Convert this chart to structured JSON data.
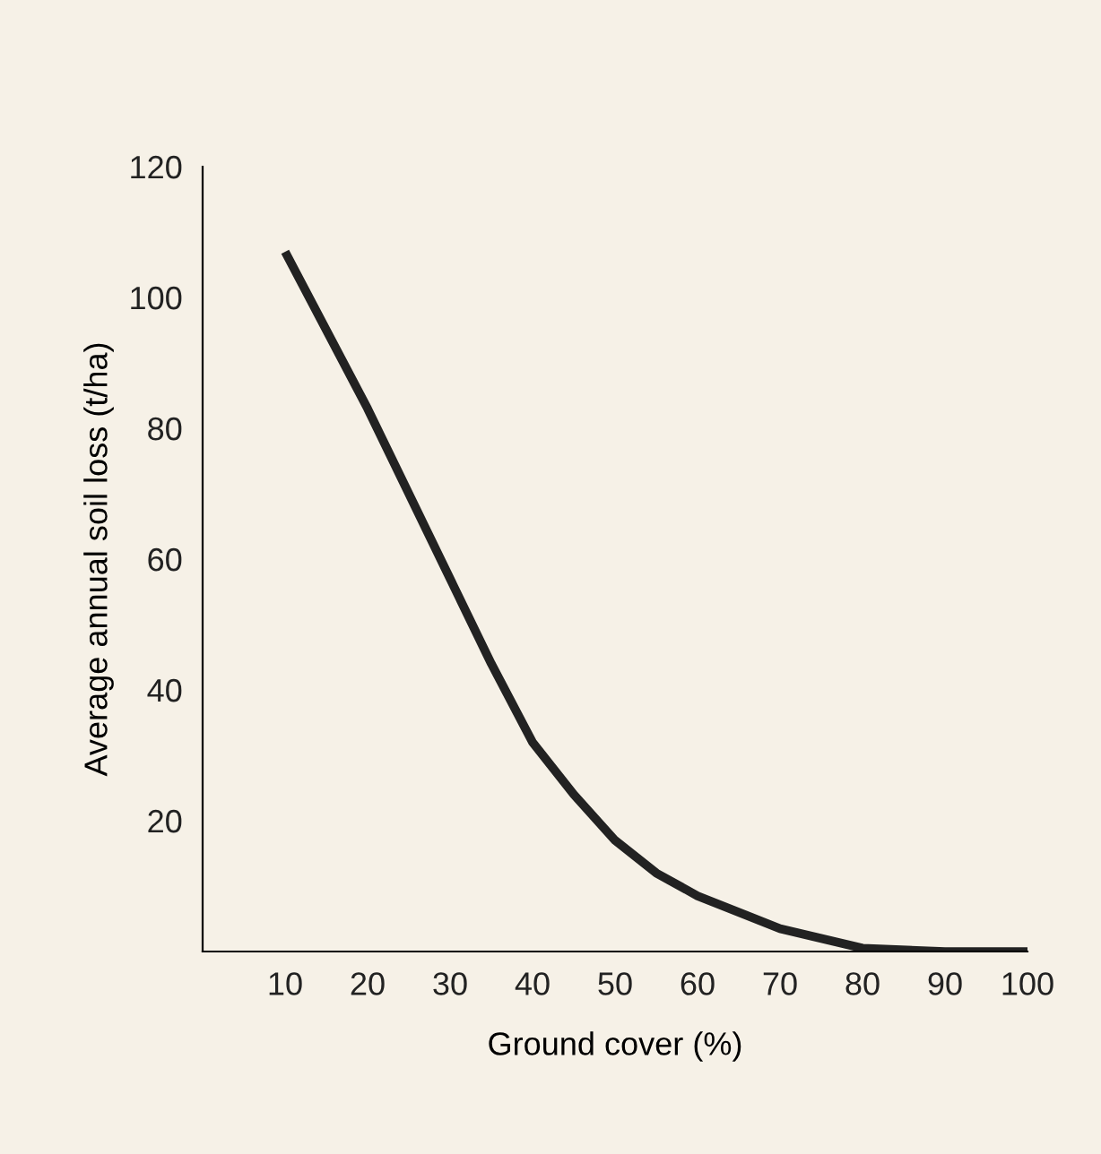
{
  "chart_data": {
    "type": "line",
    "xlabel": "Ground cover (%)",
    "ylabel": "Average annual soil loss (t/ha)",
    "x": [
      10,
      20,
      30,
      35,
      40,
      45,
      50,
      55,
      60,
      70,
      80,
      90,
      100
    ],
    "series": [
      {
        "color": "#222222",
        "values": [
          107,
          83,
          57,
          44,
          32,
          24,
          17,
          12,
          8.5,
          3.5,
          0.5,
          0,
          0
        ]
      }
    ],
    "xlim": [
      0,
      100
    ],
    "ylim": [
      0,
      120
    ],
    "xticks": [
      10,
      20,
      30,
      40,
      50,
      60,
      70,
      80,
      90,
      100
    ],
    "yticks": [
      20,
      40,
      60,
      80,
      100,
      120
    ],
    "grid": false,
    "legend": false,
    "marker": "none",
    "line_style": "solid"
  }
}
